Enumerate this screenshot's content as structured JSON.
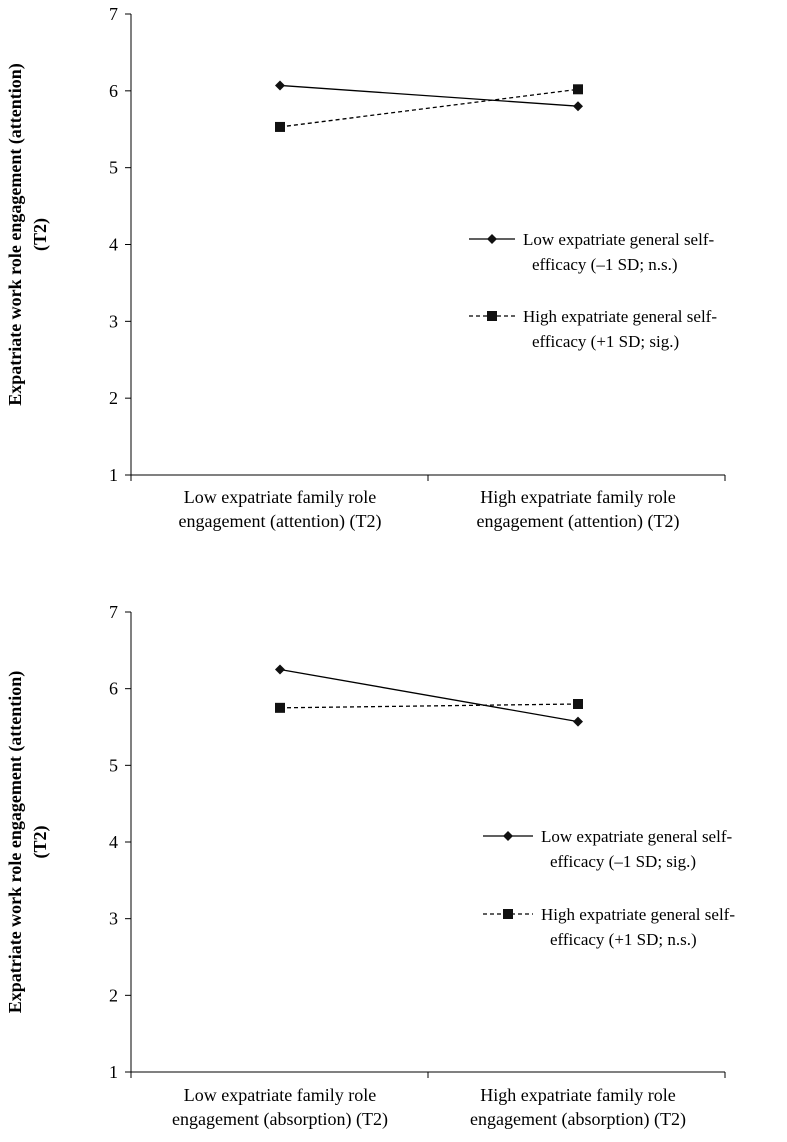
{
  "chart_data": [
    {
      "type": "line",
      "ylabel_lines": [
        "Expatriate work role engagement (attention)",
        "(T2)"
      ],
      "ylim": [
        1,
        7
      ],
      "yticks": [
        "1",
        "2",
        "3",
        "4",
        "5",
        "6",
        "7"
      ],
      "categories": [
        [
          "Low expatriate family role",
          "engagement (attention) (T2)"
        ],
        [
          "High expatriate family role",
          "engagement (attention) (T2)"
        ]
      ],
      "series": [
        {
          "name_lines": [
            "Low expatriate general self-",
            "efficacy  (–1 SD; n.s.)"
          ],
          "values": [
            6.07,
            5.8
          ],
          "style": "solid",
          "marker": "diamond"
        },
        {
          "name_lines": [
            "High expatriate general self-",
            "efficacy  (+1 SD; sig.)"
          ],
          "values": [
            5.53,
            6.02
          ],
          "style": "dashed",
          "marker": "square"
        }
      ],
      "legend_position": "right",
      "grid": false
    },
    {
      "type": "line",
      "ylabel_lines": [
        "Expatriate work role engagement (attention)",
        "(T2)"
      ],
      "ylim": [
        1,
        7
      ],
      "yticks": [
        "1",
        "2",
        "3",
        "4",
        "5",
        "6",
        "7"
      ],
      "categories": [
        [
          "Low expatriate family role",
          "engagement (absorption) (T2)"
        ],
        [
          "High expatriate family role",
          "engagement (absorption) (T2)"
        ]
      ],
      "series": [
        {
          "name_lines": [
            "Low expatriate general self-",
            "efficacy  (–1 SD; sig.)"
          ],
          "values": [
            6.25,
            5.57
          ],
          "style": "solid",
          "marker": "diamond"
        },
        {
          "name_lines": [
            "High expatriate general self-",
            "efficacy  (+1 SD; n.s.)"
          ],
          "values": [
            5.75,
            5.8
          ],
          "style": "dashed",
          "marker": "square"
        }
      ],
      "legend_position": "right",
      "grid": false
    }
  ]
}
